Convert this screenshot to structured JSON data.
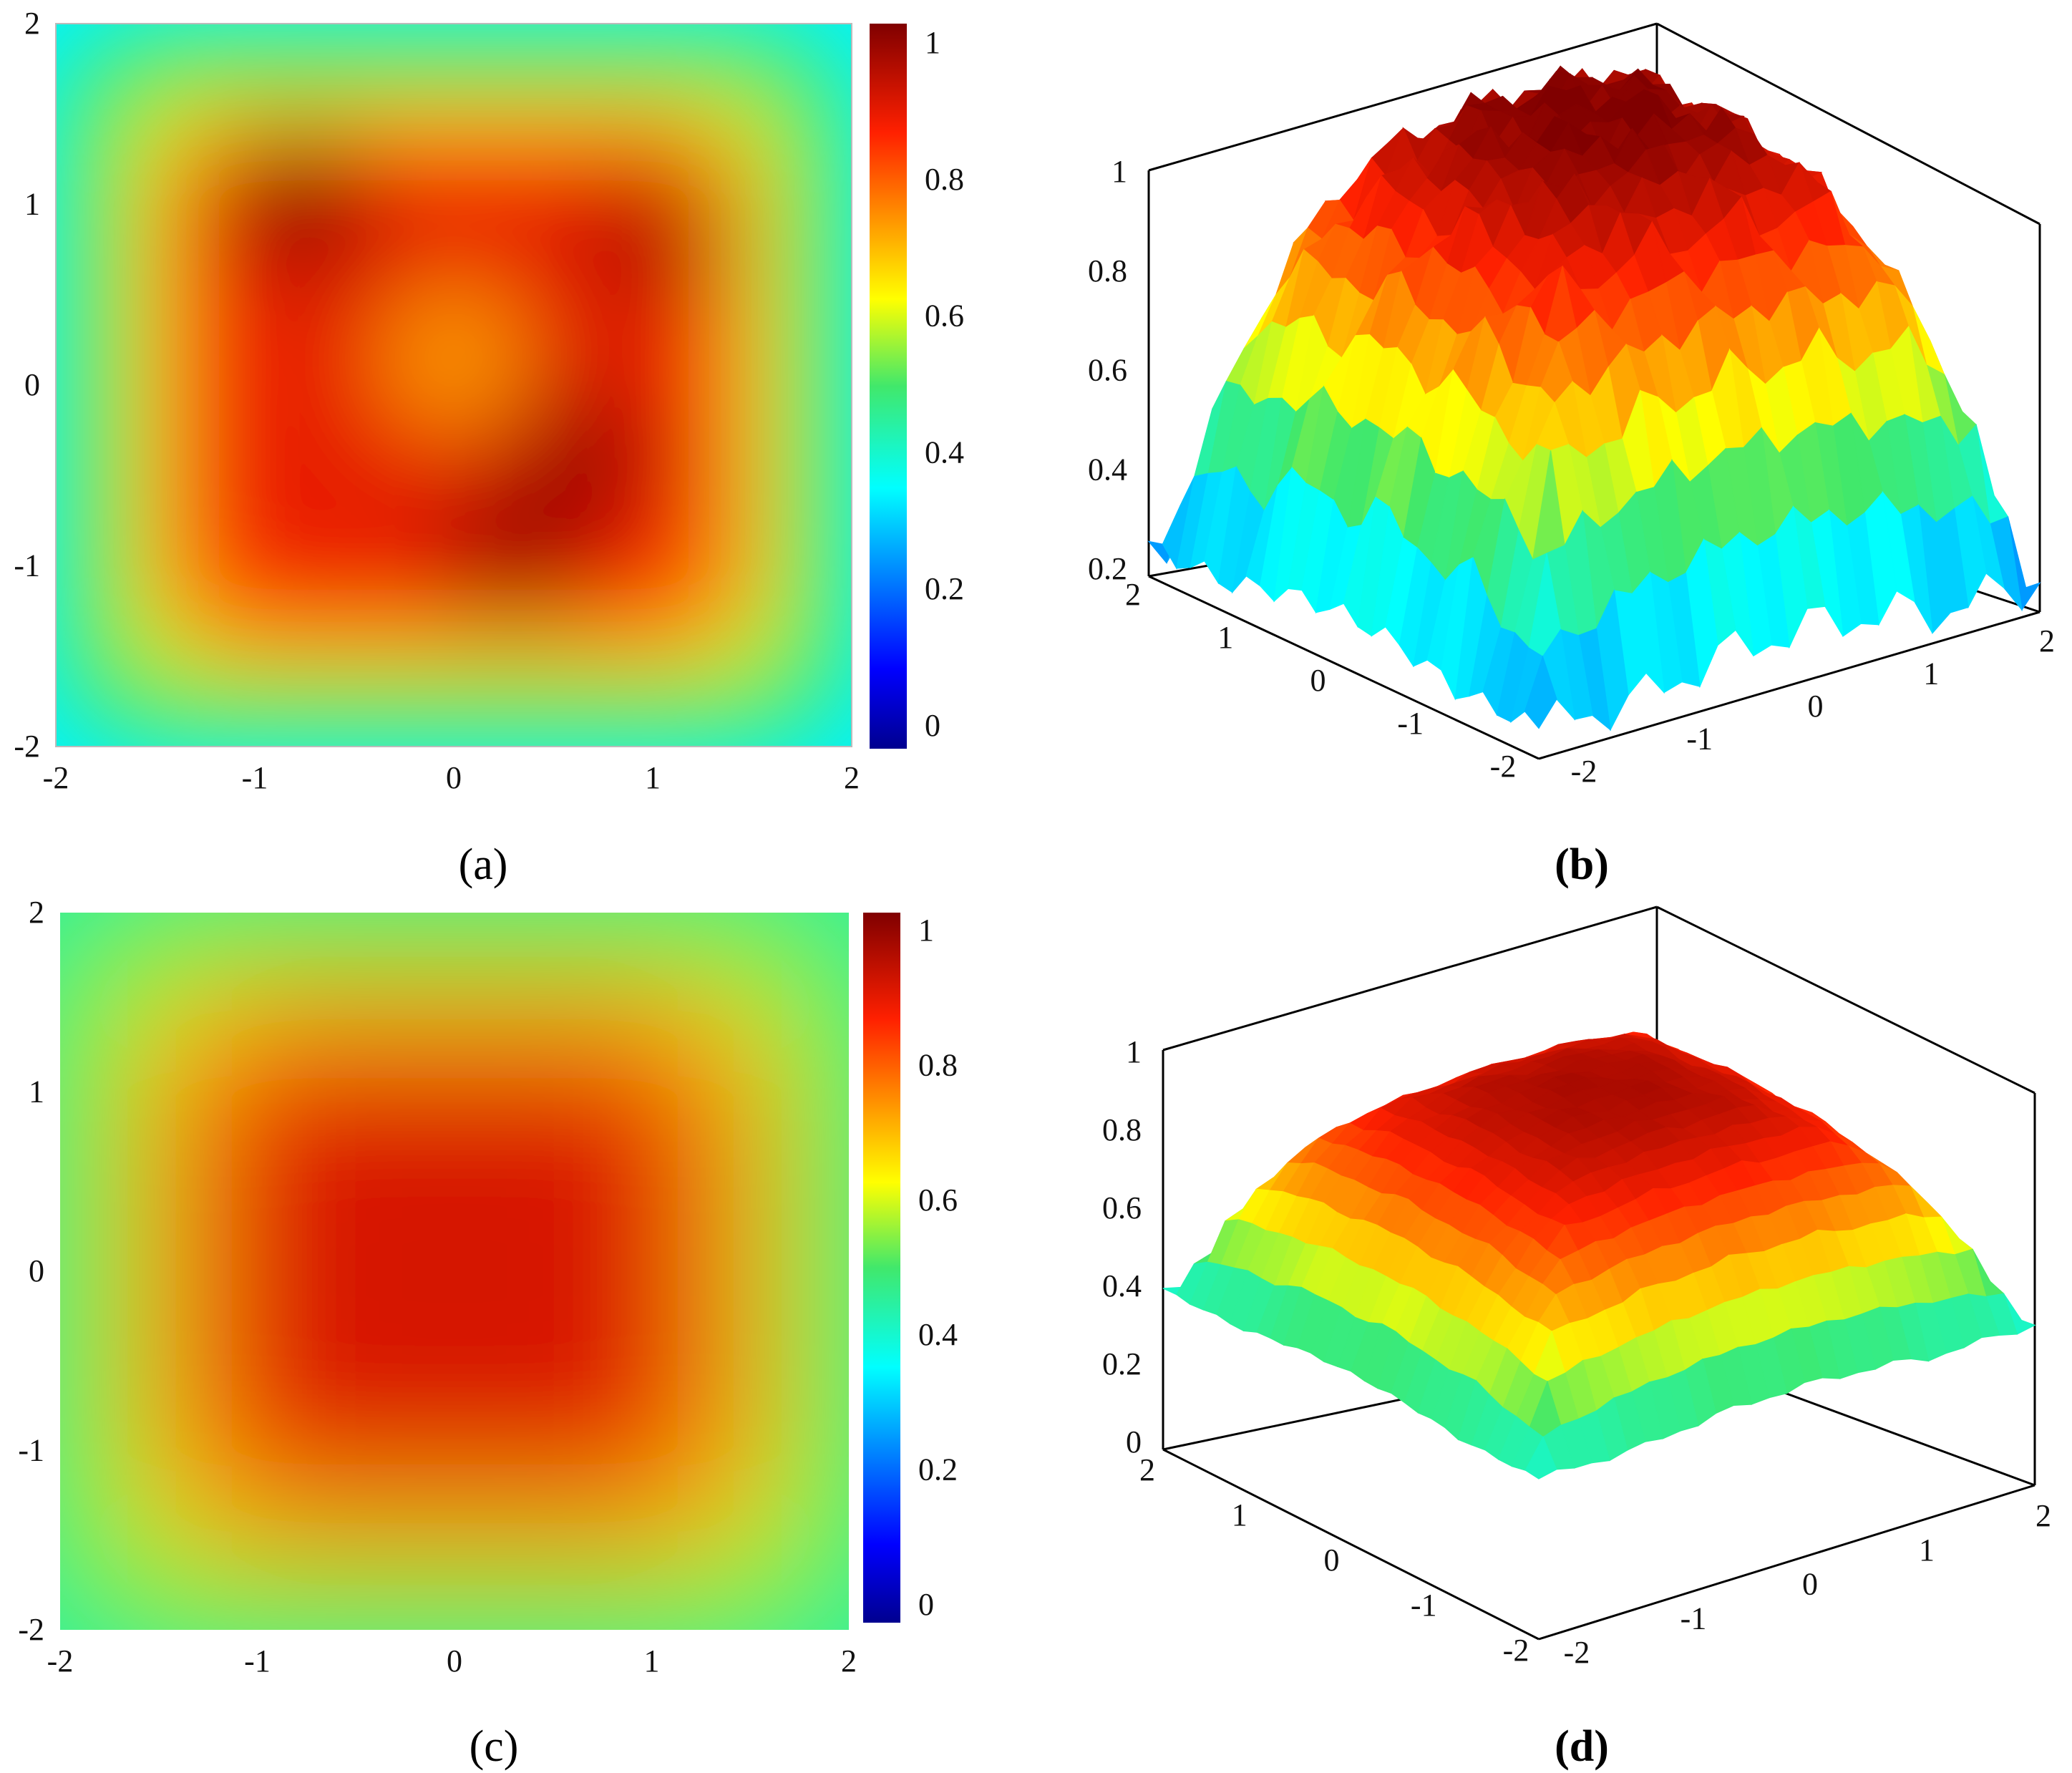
{
  "panel_labels": [
    "(a)",
    "(b)",
    "(c)",
    "(d)"
  ],
  "colormap": {
    "name": "jet",
    "stops": [
      {
        "v": 0.0,
        "color": "#00008f"
      },
      {
        "v": 0.11,
        "color": "#0000ff"
      },
      {
        "v": 0.36,
        "color": "#00ffff"
      },
      {
        "v": 0.5,
        "color": "#41e86b"
      },
      {
        "v": 0.62,
        "color": "#ffff00"
      },
      {
        "v": 0.85,
        "color": "#ff2000"
      },
      {
        "v": 1.0,
        "color": "#800000"
      }
    ]
  },
  "chart_data": [
    {
      "panel": "(a)",
      "type": "heatmap",
      "x_ticks": [
        "-2",
        "-1",
        "0",
        "1",
        "2"
      ],
      "y_ticks": [
        "2",
        "1",
        "0",
        "-1",
        "-2"
      ],
      "xlim": [
        -2,
        2
      ],
      "ylim": [
        -2,
        2
      ],
      "colorbar": {
        "ticks": [
          "1",
          "0.8",
          "0.6",
          "0.4",
          "0.2",
          "0"
        ],
        "range": [
          0,
          1
        ]
      },
      "z_center": 0.88,
      "z_corner": 0.35,
      "z_edge": 0.55,
      "hot_spots": [
        {
          "x": -0.8,
          "y": 1.0,
          "z": 1.0
        },
        {
          "x": 0.65,
          "y": -0.4,
          "z": 0.98
        },
        {
          "x": 0.3,
          "y": -0.9,
          "z": 0.98
        },
        {
          "x": 0.0,
          "y": 0.15,
          "z": 0.7
        },
        {
          "x": 1.0,
          "y": 0.8,
          "z": 0.95
        }
      ]
    },
    {
      "panel": "(b)",
      "type": "surface",
      "z_ticks": [
        "1",
        "0.8",
        "0.6",
        "0.4",
        "0.2"
      ],
      "zlim": [
        0.2,
        1
      ],
      "y_ticks": [
        "2",
        "1",
        "0",
        "-1",
        "-2"
      ],
      "x_ticks": [
        "-2",
        "-1",
        "0",
        "1",
        "2"
      ],
      "peak_z": 1.0,
      "corner_z": 0.25
    },
    {
      "panel": "(c)",
      "type": "heatmap",
      "x_ticks": [
        "-2",
        "-1",
        "0",
        "1",
        "2"
      ],
      "y_ticks": [
        "2",
        "1",
        "0",
        "-1",
        "-2"
      ],
      "xlim": [
        -2,
        2
      ],
      "ylim": [
        -2,
        2
      ],
      "colorbar": {
        "ticks": [
          "1",
          "0.8",
          "0.6",
          "0.4",
          "0.2",
          "0"
        ],
        "range": [
          0,
          1
        ]
      },
      "z_center": 0.9,
      "z_corner": 0.45,
      "z_edge": 0.6
    },
    {
      "panel": "(d)",
      "type": "surface",
      "z_ticks": [
        "1",
        "0.8",
        "0.6",
        "0.4",
        "0.2",
        "0"
      ],
      "zlim": [
        0,
        1
      ],
      "y_ticks": [
        "2",
        "1",
        "0",
        "-1",
        "-2"
      ],
      "x_ticks": [
        "-2",
        "-1",
        "0",
        "1",
        "2"
      ],
      "peak_z": 0.95,
      "corner_z": 0.4
    }
  ]
}
